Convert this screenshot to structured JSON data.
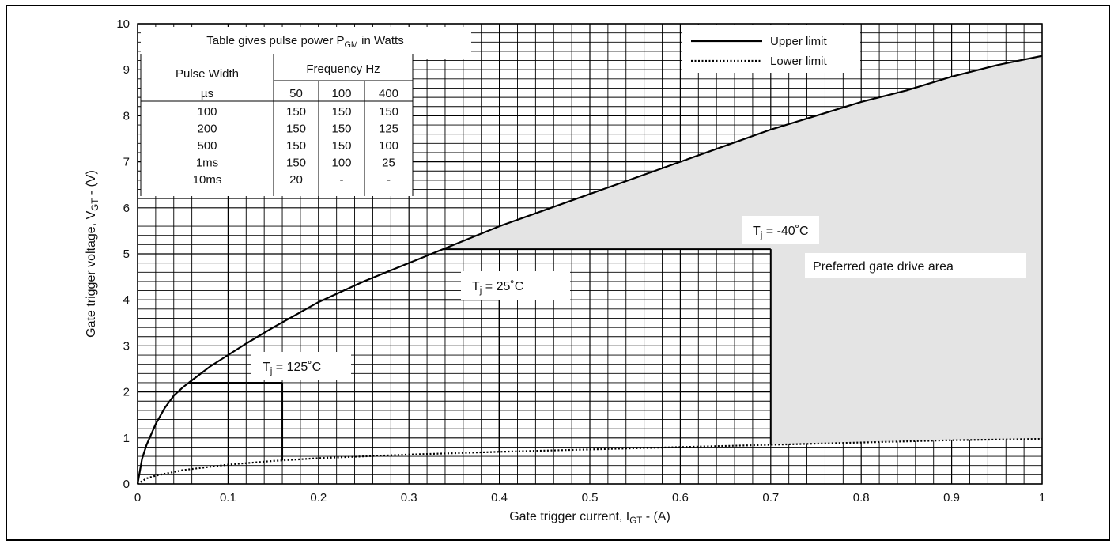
{
  "chart_data": {
    "type": "line",
    "xlabel": {
      "main": "Gate trigger current, I",
      "sub": "GT",
      "tail": " - (A)"
    },
    "ylabel": {
      "main": "Gate trigger voltage, V",
      "sub": "GT",
      "tail": " - (V)"
    },
    "xlim": [
      0,
      1
    ],
    "ylim": [
      0,
      10
    ],
    "x_ticks": [
      "0",
      "0.1",
      "0.2",
      "0.3",
      "0.4",
      "0.5",
      "0.6",
      "0.7",
      "0.8",
      "0.9",
      "1"
    ],
    "y_ticks": [
      "0",
      "1",
      "2",
      "3",
      "4",
      "5",
      "6",
      "7",
      "8",
      "9",
      "10"
    ],
    "grid": true,
    "legend_position": "top-right",
    "series": [
      {
        "name": "Upper limit",
        "style": "solid",
        "x": [
          0,
          0.005,
          0.01,
          0.02,
          0.03,
          0.04,
          0.05,
          0.06,
          0.08,
          0.1,
          0.12,
          0.15,
          0.2,
          0.25,
          0.3,
          0.35,
          0.4,
          0.45,
          0.5,
          0.55,
          0.6,
          0.65,
          0.7,
          0.75,
          0.8,
          0.85,
          0.9,
          0.95,
          1.0
        ],
        "y": [
          0,
          0.55,
          0.85,
          1.3,
          1.65,
          1.92,
          2.1,
          2.25,
          2.55,
          2.8,
          3.05,
          3.4,
          3.95,
          4.4,
          4.8,
          5.2,
          5.6,
          5.95,
          6.3,
          6.65,
          7.0,
          7.35,
          7.7,
          8.0,
          8.3,
          8.55,
          8.85,
          9.1,
          9.3
        ]
      },
      {
        "name": "Lower limit",
        "style": "dotted",
        "x": [
          0,
          0.01,
          0.02,
          0.05,
          0.1,
          0.15,
          0.2,
          0.3,
          0.4,
          0.5,
          0.6,
          0.7,
          0.8,
          0.9,
          1.0
        ],
        "y": [
          0,
          0.12,
          0.18,
          0.3,
          0.42,
          0.5,
          0.56,
          0.64,
          0.7,
          0.75,
          0.8,
          0.85,
          0.9,
          0.95,
          0.98
        ]
      }
    ],
    "boxes": [
      {
        "label_main": "T",
        "label_sub": "j",
        "label_tail": " = 125˚C",
        "x": 0.16,
        "y": 2.2
      },
      {
        "label_main": "T",
        "label_sub": "j",
        "label_tail": " = 25˚C",
        "x": 0.4,
        "y": 4.0
      },
      {
        "label_main": "T",
        "label_sub": "j",
        "label_tail": " = -40˚C",
        "x": 0.7,
        "y": 5.1
      }
    ],
    "preferred_area_label": "Preferred gate drive area",
    "preferred_area_color": "#e4e4e4",
    "table": {
      "title_main": "Table gives pulse power P",
      "title_sub": "GM",
      "title_tail": " in Watts",
      "col1_header": [
        "Pulse Width",
        "µs"
      ],
      "freq_header": "Frequency Hz",
      "freqs": [
        "50",
        "100",
        "400"
      ],
      "rows": [
        [
          "100",
          "150",
          "150",
          "150"
        ],
        [
          "200",
          "150",
          "150",
          "125"
        ],
        [
          "500",
          "150",
          "150",
          "100"
        ],
        [
          "1ms",
          "150",
          "100",
          "25"
        ],
        [
          "10ms",
          "20",
          "-",
          "-"
        ]
      ]
    }
  }
}
